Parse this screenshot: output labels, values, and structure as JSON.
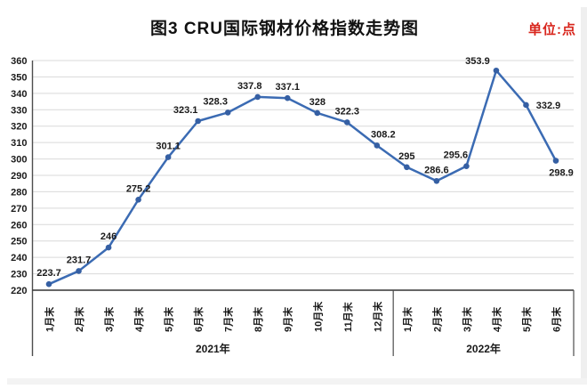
{
  "header": {
    "title": "图3  CRU国际钢材价格指数走势图",
    "unit_label": "单位:点",
    "unit_color": "#d8251c"
  },
  "chart_data": {
    "type": "line",
    "title": "图3 CRU国际钢材价格指数走势图",
    "unit": "点",
    "categories": [
      "1月末",
      "2月末",
      "3月末",
      "4月末",
      "5月末",
      "6月末",
      "7月末",
      "8月末",
      "9月末",
      "10月末",
      "11月末",
      "12月末",
      "1月末",
      "2月末",
      "3月末",
      "4月末",
      "5月末",
      "6月末"
    ],
    "category_groups": [
      {
        "label": "2021年",
        "count": 12
      },
      {
        "label": "2022年",
        "count": 6
      }
    ],
    "values": [
      223.7,
      231.7,
      246,
      275.2,
      301.1,
      323.1,
      328.3,
      337.8,
      337.1,
      328,
      322.3,
      308.2,
      295,
      286.6,
      295.6,
      353.9,
      332.9,
      298.9
    ],
    "labels": [
      "223.7",
      "231.7",
      "246",
      "275.2",
      "301.1",
      "323.1",
      "328.3",
      "337.8",
      "337.1",
      "328",
      "322.3",
      "308.2",
      "295",
      "286.6",
      "295.6",
      "353.9",
      "332.9",
      "298.9"
    ],
    "ylim": [
      220,
      360
    ],
    "ytick_step": 10,
    "grid": true,
    "legend": "none",
    "line_color": "#3b6bb3",
    "marker_color": "#355fa3",
    "gridline_color": "#d9d9d9",
    "axis_color": "#4d4d4d",
    "label_color": "#1a1a1a"
  }
}
